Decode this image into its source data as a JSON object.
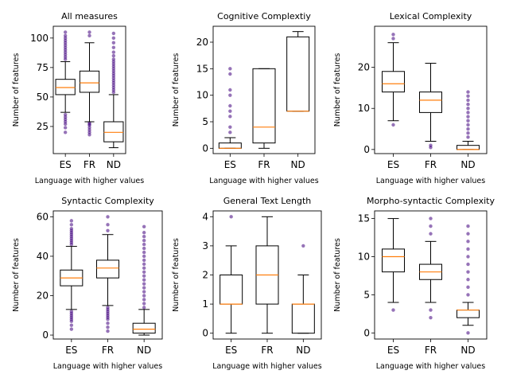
{
  "chart_data": [
    {
      "type": "box",
      "title": "All measures",
      "xlabel": "Language with higher values",
      "ylabel": "Number of features",
      "categories": [
        "ES",
        "FR",
        "ND"
      ],
      "ylim": [
        2,
        110
      ],
      "yticks": [
        25,
        50,
        75,
        100
      ],
      "boxes": [
        {
          "category": "ES",
          "whislo": 37,
          "q1": 52,
          "median": 58,
          "q3": 65,
          "whishi": 80,
          "fliers_low": [
            20,
            24,
            27,
            29,
            31,
            33,
            35
          ],
          "fliers_high": [
            82,
            84,
            86,
            88,
            90,
            92,
            94,
            96,
            98,
            100,
            102,
            105
          ]
        },
        {
          "category": "FR",
          "whislo": 29,
          "q1": 54,
          "median": 62,
          "q3": 72,
          "whishi": 96,
          "fliers_low": [
            18,
            20,
            22,
            24,
            26,
            27,
            28
          ],
          "fliers_high": [
            102,
            105
          ]
        },
        {
          "category": "ND",
          "whislo": 7,
          "q1": 12,
          "median": 20,
          "q3": 29,
          "whishi": 52,
          "fliers_low": [],
          "fliers_high": [
            54,
            56,
            58,
            60,
            62,
            64,
            66,
            68,
            70,
            72,
            74,
            76,
            78,
            80,
            82,
            85,
            88,
            92,
            96,
            100,
            104
          ]
        }
      ]
    },
    {
      "type": "box",
      "title": "Cognitive Complextiy",
      "xlabel": "Language with higher values",
      "ylabel": "Number of features",
      "categories": [
        "ES",
        "FR",
        "ND"
      ],
      "ylim": [
        -1,
        23
      ],
      "yticks": [
        0,
        5,
        10,
        15,
        20
      ],
      "boxes": [
        {
          "category": "ES",
          "whislo": 0,
          "q1": 0,
          "median": 0,
          "q3": 1,
          "whishi": 2,
          "fliers_low": [],
          "fliers_high": [
            3,
            4,
            6,
            7,
            8,
            10,
            11,
            14,
            15
          ]
        },
        {
          "category": "FR",
          "whislo": 0,
          "q1": 1,
          "median": 4,
          "q3": 15,
          "whishi": 15,
          "fliers_low": [],
          "fliers_high": []
        },
        {
          "category": "ND",
          "whislo": 7,
          "q1": 7,
          "median": 7,
          "q3": 21,
          "whishi": 22,
          "fliers_low": [],
          "fliers_high": []
        }
      ]
    },
    {
      "type": "box",
      "title": "Lexical Complexity",
      "xlabel": "Language with higher values",
      "ylabel": "Number of features",
      "categories": [
        "ES",
        "FR",
        "ND"
      ],
      "ylim": [
        -1,
        30
      ],
      "yticks": [
        0,
        10,
        20
      ],
      "boxes": [
        {
          "category": "ES",
          "whislo": 7,
          "q1": 14,
          "median": 16,
          "q3": 19,
          "whishi": 26,
          "fliers_low": [
            6
          ],
          "fliers_high": [
            27,
            28
          ]
        },
        {
          "category": "FR",
          "whislo": 2,
          "q1": 9,
          "median": 12,
          "q3": 14,
          "whishi": 21,
          "fliers_low": [
            0.5,
            1
          ],
          "fliers_high": []
        },
        {
          "category": "ND",
          "whislo": 0,
          "q1": 0,
          "median": 0,
          "q3": 1,
          "whishi": 2,
          "fliers_low": [],
          "fliers_high": [
            3,
            4,
            5,
            6,
            7,
            8,
            9,
            10,
            11,
            12,
            13,
            14
          ]
        }
      ]
    },
    {
      "type": "box",
      "title": "Syntactic Complexity",
      "xlabel": "Language with higher values",
      "ylabel": "Number of features",
      "categories": [
        "ES",
        "FR",
        "ND"
      ],
      "ylim": [
        -2,
        63
      ],
      "yticks": [
        0,
        20,
        40,
        60
      ],
      "boxes": [
        {
          "category": "ES",
          "whislo": 13,
          "q1": 25,
          "median": 29,
          "q3": 33,
          "whishi": 45,
          "fliers_low": [
            3,
            5,
            7,
            8,
            9,
            10,
            11,
            12
          ],
          "fliers_high": [
            46,
            47,
            48,
            49,
            50,
            51,
            52,
            53,
            54,
            56,
            58
          ]
        },
        {
          "category": "FR",
          "whislo": 15,
          "q1": 29,
          "median": 34,
          "q3": 38,
          "whishi": 51,
          "fliers_low": [
            2,
            4,
            6,
            8,
            9,
            10,
            11,
            12,
            13,
            14
          ],
          "fliers_high": [
            53,
            56,
            60
          ]
        },
        {
          "category": "ND",
          "whislo": 0,
          "q1": 1,
          "median": 3,
          "q3": 6,
          "whishi": 13,
          "fliers_low": [],
          "fliers_high": [
            14,
            16,
            18,
            20,
            22,
            24,
            26,
            28,
            30,
            32,
            34,
            36,
            38,
            40,
            42,
            44,
            46,
            48,
            50,
            52,
            55
          ]
        }
      ]
    },
    {
      "type": "box",
      "title": "General Text Length",
      "xlabel": "Language with higher values",
      "ylabel": "Number of features",
      "categories": [
        "ES",
        "FR",
        "ND"
      ],
      "ylim": [
        -0.2,
        4.2
      ],
      "yticks": [
        0,
        1,
        2,
        3,
        4
      ],
      "boxes": [
        {
          "category": "ES",
          "whislo": 0,
          "q1": 1,
          "median": 1,
          "q3": 2,
          "whishi": 3,
          "fliers_low": [],
          "fliers_high": [
            4
          ]
        },
        {
          "category": "FR",
          "whislo": 0,
          "q1": 1,
          "median": 2,
          "q3": 3,
          "whishi": 4,
          "fliers_low": [],
          "fliers_high": []
        },
        {
          "category": "ND",
          "whislo": 0,
          "q1": 0,
          "median": 1,
          "q3": 1,
          "whishi": 2,
          "fliers_low": [],
          "fliers_high": [
            3
          ]
        }
      ]
    },
    {
      "type": "box",
      "title": "Morpho-syntactic Complexity",
      "xlabel": "Language with higher values",
      "ylabel": "Number of features",
      "categories": [
        "ES",
        "FR",
        "ND"
      ],
      "ylim": [
        -0.8,
        16
      ],
      "yticks": [
        0,
        5,
        10,
        15
      ],
      "boxes": [
        {
          "category": "ES",
          "whislo": 4,
          "q1": 8,
          "median": 10,
          "q3": 11,
          "whishi": 15,
          "fliers_low": [
            3
          ],
          "fliers_high": []
        },
        {
          "category": "FR",
          "whislo": 4,
          "q1": 7,
          "median": 8,
          "q3": 9,
          "whishi": 12,
          "fliers_low": [
            2,
            3
          ],
          "fliers_high": [
            13,
            14,
            15
          ]
        },
        {
          "category": "ND",
          "whislo": 1,
          "q1": 2,
          "median": 3,
          "q3": 3,
          "whishi": 4,
          "fliers_low": [
            0
          ],
          "fliers_high": [
            5,
            6,
            7,
            8,
            9,
            10,
            11,
            12,
            13,
            14
          ]
        }
      ]
    }
  ],
  "colors": {
    "median": "#ff7f0e",
    "flier": "#3f007d",
    "box": "#000000"
  }
}
